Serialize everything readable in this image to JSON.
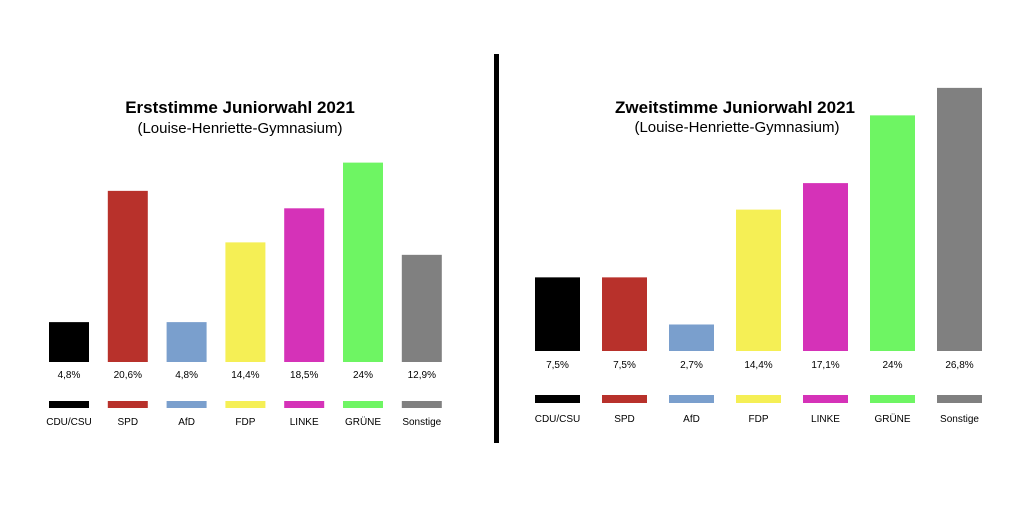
{
  "colors": {
    "CDU/CSU": "#000000",
    "SPD": "#b8312b",
    "AfD": "#7a9fcd",
    "FDP": "#f5ef55",
    "LINKE": "#d532b8",
    "GRÜNE": "#6ef563",
    "Sonstige": "#808080"
  },
  "chart_data": [
    {
      "type": "bar",
      "title": "Erststimme Juniorwahl 2021",
      "subtitle": "(Louise-Henriette-Gymnasium)",
      "categories": [
        "CDU/CSU",
        "SPD",
        "AfD",
        "FDP",
        "LINKE",
        "GRÜNE",
        "Sonstige"
      ],
      "values": [
        4.8,
        20.6,
        4.8,
        14.4,
        18.5,
        24,
        12.9
      ],
      "value_labels": [
        "4,8%",
        "20,6%",
        "4,8%",
        "14,4%",
        "18,5%",
        "24%",
        "12,9%"
      ],
      "ylim": [
        0,
        26
      ],
      "grid": false,
      "legend": "bottom"
    },
    {
      "type": "bar",
      "title": "Zweitstimme Juniorwahl 2021",
      "subtitle": "(Louise-Henriette-Gymnasium)",
      "categories": [
        "CDU/CSU",
        "SPD",
        "AfD",
        "FDP",
        "LINKE",
        "GRÜNE",
        "Sonstige"
      ],
      "values": [
        7.5,
        7.5,
        2.7,
        14.4,
        17.1,
        24,
        26.8
      ],
      "value_labels": [
        "7,5%",
        "7,5%",
        "2,7%",
        "14,4%",
        "17,1%",
        "24%",
        "26,8%"
      ],
      "ylim": [
        0,
        27.5
      ],
      "grid": false,
      "legend": "bottom"
    }
  ]
}
